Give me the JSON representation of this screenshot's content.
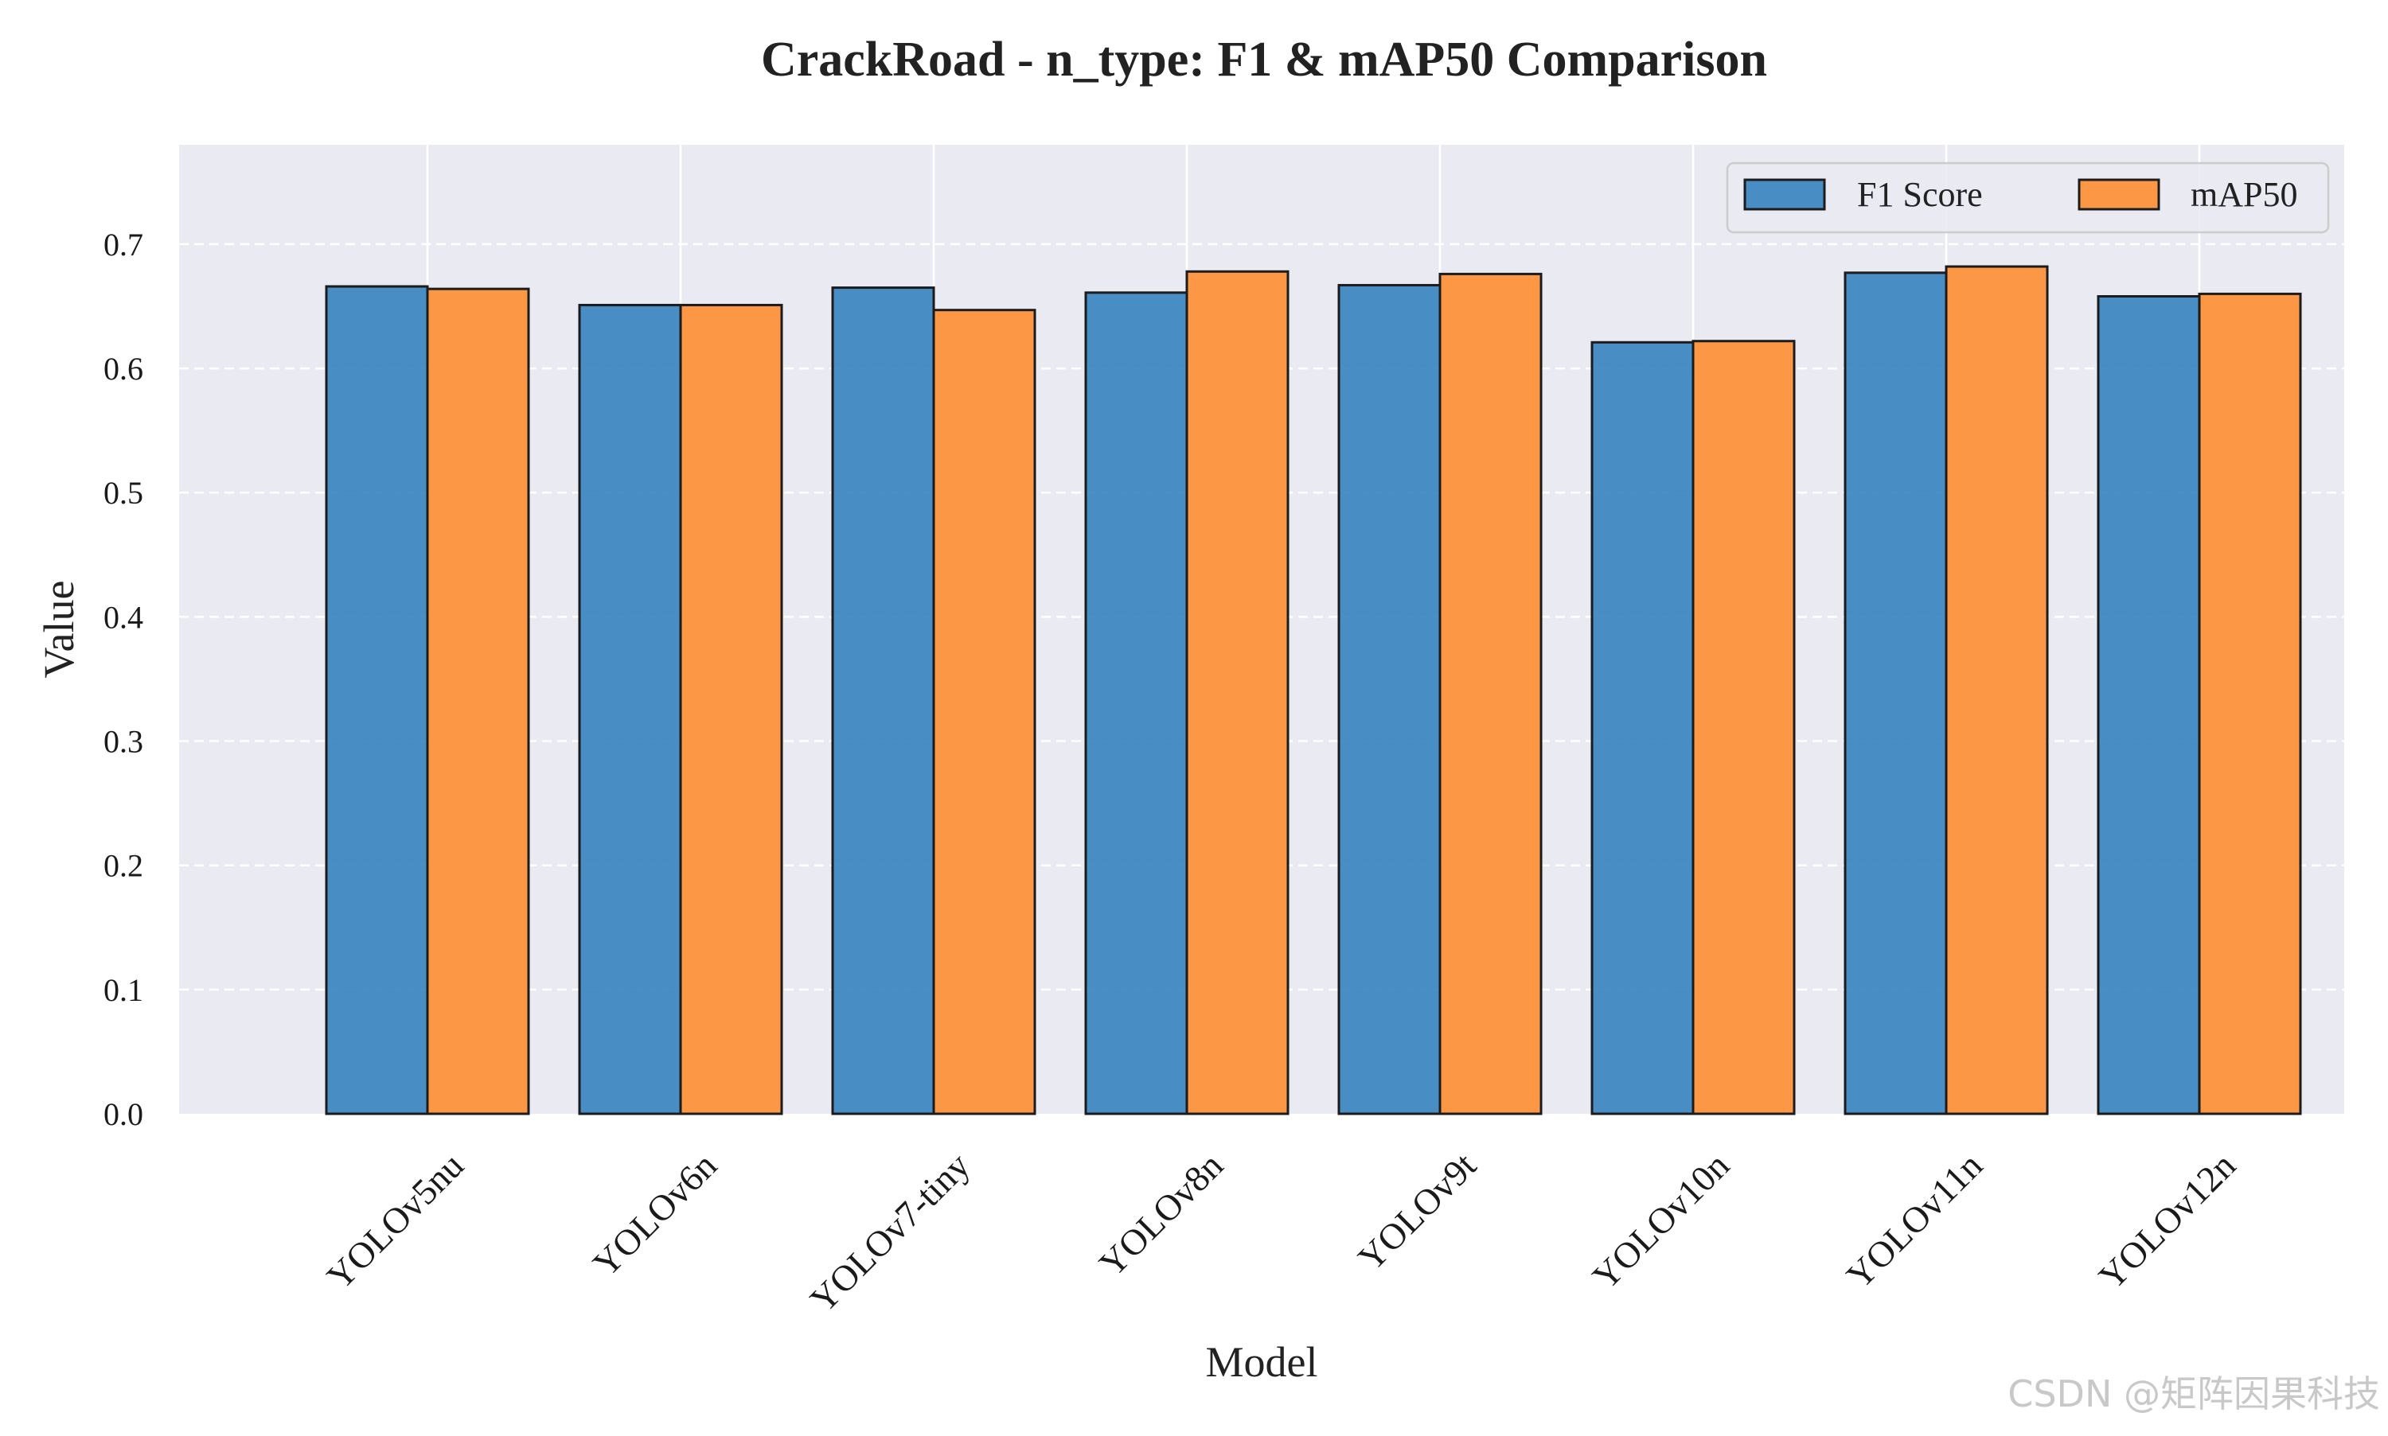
{
  "watermark": "CSDN @矩阵因果科技",
  "chart_data": {
    "type": "bar",
    "title": "CrackRoad - n_type: F1 & mAP50 Comparison",
    "xlabel": "Model",
    "ylabel": "Value",
    "categories": [
      "YOLOv5nu",
      "YOLOv6n",
      "YOLOv7-tiny",
      "YOLOv8n",
      "YOLOv9t",
      "YOLOv10n",
      "YOLOv11n",
      "YOLOv12n"
    ],
    "series": [
      {
        "name": "F1 Score",
        "color": "#2f7ebc",
        "values": [
          0.666,
          0.651,
          0.665,
          0.661,
          0.667,
          0.621,
          0.677,
          0.658
        ]
      },
      {
        "name": "mAP50",
        "color": "#fd8a2a",
        "values": [
          0.664,
          0.651,
          0.647,
          0.678,
          0.676,
          0.622,
          0.682,
          0.66
        ]
      }
    ],
    "ylim": [
      0,
      0.78
    ],
    "yticks": [
      0.0,
      0.1,
      0.2,
      0.3,
      0.4,
      0.5,
      0.6,
      0.7
    ],
    "ytick_labels": [
      "0.0",
      "0.1",
      "0.2",
      "0.3",
      "0.4",
      "0.5",
      "0.6",
      "0.7"
    ],
    "grid": true,
    "legend_position": "top-right"
  }
}
